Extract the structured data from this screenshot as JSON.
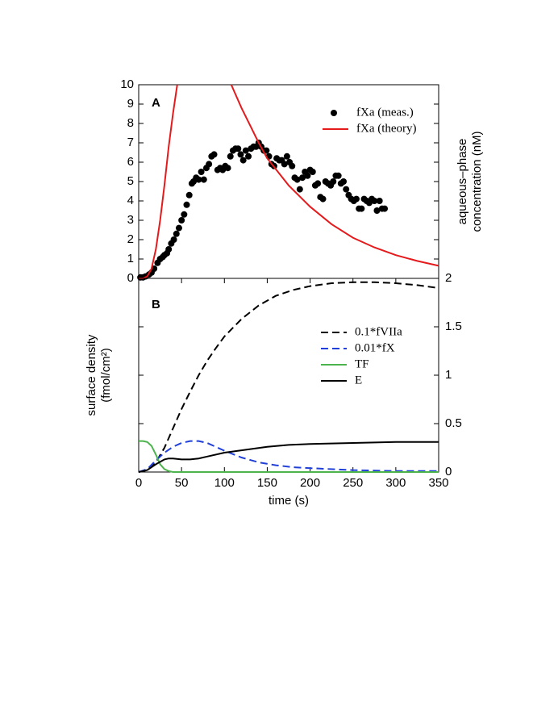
{
  "chart_data": [
    {
      "type": "mixed",
      "panel_label": "A",
      "ylabel": [
        "aqueous–phase",
        "concentration (nM)"
      ],
      "xlim": [
        0,
        350
      ],
      "ylim": [
        0,
        10
      ],
      "yticks": [
        0,
        1,
        2,
        3,
        4,
        5,
        6,
        7,
        8,
        9,
        10
      ],
      "legend": "upper right",
      "series": [
        {
          "name": "fXa (meas.)",
          "kind": "scatter",
          "color": "#000000",
          "x": [
            2,
            5,
            8,
            12,
            15,
            18,
            22,
            25,
            28,
            30,
            33,
            35,
            38,
            41,
            44,
            47,
            50,
            53,
            56,
            59,
            62,
            64,
            67,
            70,
            73,
            76,
            79,
            82,
            85,
            88,
            92,
            95,
            98,
            101,
            104,
            107,
            110,
            113,
            116,
            119,
            122,
            125,
            128,
            131,
            134,
            137,
            140,
            143,
            146,
            149,
            152,
            155,
            158,
            161,
            164,
            167,
            170,
            173,
            176,
            179,
            182,
            185,
            188,
            191,
            194,
            197,
            200,
            203,
            206,
            209,
            212,
            215,
            218,
            221,
            224,
            227,
            230,
            233,
            236,
            239,
            242,
            245,
            248,
            251,
            254,
            257,
            260,
            263,
            266,
            269,
            272,
            275,
            278,
            281,
            284,
            287
          ],
          "values": [
            0.05,
            0.05,
            0.1,
            0.2,
            0.3,
            0.5,
            0.8,
            1.0,
            1.1,
            1.2,
            1.3,
            1.5,
            1.8,
            2.0,
            2.3,
            2.6,
            3.0,
            3.3,
            3.8,
            4.3,
            4.9,
            5.0,
            5.2,
            5.1,
            5.5,
            5.1,
            5.7,
            5.9,
            6.3,
            6.4,
            5.6,
            5.7,
            5.6,
            5.8,
            5.7,
            6.3,
            6.6,
            6.7,
            6.7,
            6.4,
            6.1,
            6.6,
            6.3,
            6.7,
            6.8,
            6.8,
            7.0,
            6.8,
            6.6,
            6.6,
            6.3,
            5.9,
            5.8,
            6.2,
            6.1,
            6.1,
            5.9,
            6.3,
            6.0,
            5.8,
            5.2,
            5.1,
            4.6,
            5.2,
            5.5,
            5.3,
            5.6,
            5.5,
            4.8,
            4.9,
            4.2,
            4.1,
            5.0,
            4.9,
            4.8,
            5.0,
            5.3,
            5.3,
            4.9,
            5.0,
            4.6,
            4.3,
            4.1,
            4.0,
            4.1,
            3.6,
            3.6,
            4.1,
            4.0,
            3.9,
            4.1,
            4.0,
            3.5,
            4.0,
            3.6,
            3.6
          ]
        },
        {
          "name": "fXa (theory)",
          "kind": "line",
          "color": "#e41a1c",
          "linestyle": "solid",
          "x": [
            0,
            5,
            10,
            15,
            20,
            25,
            30,
            35,
            40,
            45,
            80,
            108,
            120,
            130,
            140,
            150,
            175,
            200,
            225,
            250,
            275,
            300,
            325,
            350
          ],
          "values": [
            0,
            0,
            0.1,
            0.5,
            1.5,
            3,
            4.8,
            6.8,
            8.5,
            10,
            null,
            10,
            8.8,
            7.9,
            7.0,
            6.2,
            4.8,
            3.7,
            2.8,
            2.1,
            1.6,
            1.2,
            0.9,
            0.65
          ]
        }
      ]
    },
    {
      "type": "line",
      "panel_label": "B",
      "ylabel": [
        "surface density",
        "(fmol/cm²)"
      ],
      "xlabel": "time (s)",
      "xlim": [
        0,
        350
      ],
      "xticks": [
        0,
        50,
        100,
        150,
        200,
        250,
        300,
        350
      ],
      "ylim": [
        0,
        2
      ],
      "yticks": [
        0,
        0.5,
        1,
        1.5,
        2
      ],
      "legend": "center right",
      "series": [
        {
          "name": "0.1*fVIIa",
          "kind": "line",
          "color": "#000000",
          "linestyle": "dashed",
          "x": [
            0,
            10,
            20,
            30,
            40,
            50,
            60,
            70,
            80,
            90,
            100,
            120,
            140,
            160,
            180,
            200,
            225,
            250,
            275,
            300,
            325,
            350
          ],
          "values": [
            0,
            0.02,
            0.1,
            0.25,
            0.45,
            0.65,
            0.83,
            1.0,
            1.15,
            1.28,
            1.4,
            1.58,
            1.72,
            1.82,
            1.88,
            1.92,
            1.95,
            1.96,
            1.96,
            1.95,
            1.93,
            1.9
          ]
        },
        {
          "name": "0.01*fX",
          "kind": "line",
          "color": "#1f3fd8",
          "linestyle": "dashed",
          "x": [
            0,
            10,
            20,
            30,
            40,
            50,
            60,
            65,
            70,
            80,
            90,
            100,
            120,
            140,
            160,
            180,
            200,
            250,
            300,
            350
          ],
          "values": [
            0,
            0.03,
            0.12,
            0.2,
            0.26,
            0.3,
            0.32,
            0.32,
            0.32,
            0.3,
            0.26,
            0.22,
            0.15,
            0.1,
            0.07,
            0.05,
            0.04,
            0.02,
            0.01,
            0.01
          ]
        },
        {
          "name": "TF",
          "kind": "line",
          "color": "#4db34d",
          "linestyle": "solid",
          "x": [
            0,
            5,
            10,
            15,
            20,
            25,
            30,
            35,
            40,
            50,
            100,
            200,
            350
          ],
          "values": [
            0.32,
            0.32,
            0.31,
            0.27,
            0.18,
            0.08,
            0.03,
            0.01,
            0,
            0,
            0,
            0,
            0
          ]
        },
        {
          "name": "E",
          "kind": "line",
          "color": "#000000",
          "linestyle": "solid",
          "x": [
            0,
            10,
            20,
            30,
            35,
            40,
            50,
            60,
            70,
            80,
            100,
            125,
            150,
            175,
            200,
            250,
            300,
            350
          ],
          "values": [
            0,
            0.02,
            0.08,
            0.13,
            0.14,
            0.14,
            0.13,
            0.13,
            0.14,
            0.16,
            0.2,
            0.23,
            0.26,
            0.28,
            0.29,
            0.3,
            0.31,
            0.31
          ]
        }
      ]
    }
  ]
}
